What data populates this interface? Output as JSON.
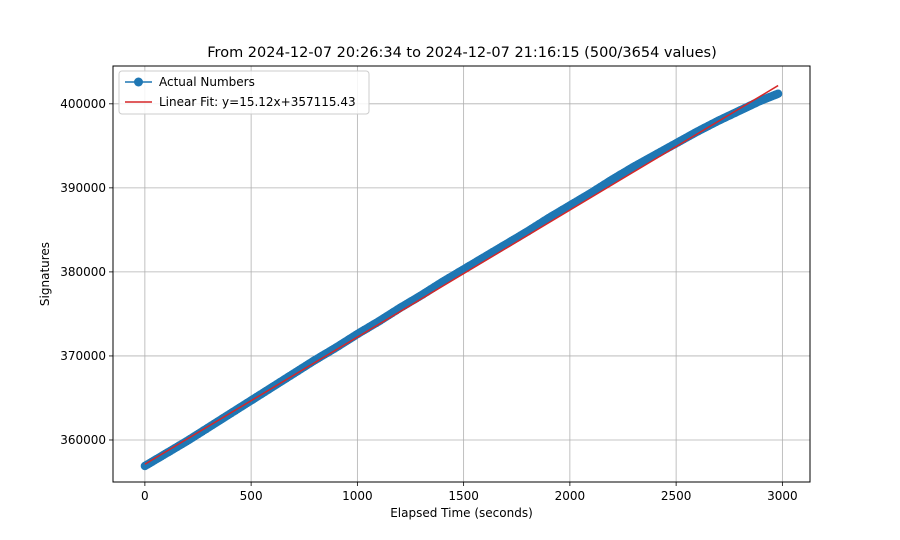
{
  "chart_data": {
    "type": "scatter",
    "title": "From 2024-12-07 20:26:34 to 2024-12-07 21:16:15 (500/3654 values)",
    "xlabel": "Elapsed Time (seconds)",
    "ylabel": "Signatures",
    "xlim": [
      -150,
      3130
    ],
    "ylim": [
      355000,
      404500
    ],
    "xticks": [
      0,
      500,
      1000,
      1500,
      2000,
      2500,
      3000
    ],
    "xtick_labels": [
      "0",
      "500",
      "1000",
      "1500",
      "2000",
      "2500",
      "3000"
    ],
    "yticks": [
      360000,
      370000,
      380000,
      390000,
      400000
    ],
    "ytick_labels": [
      "360000",
      "370000",
      "380000",
      "390000",
      "400000"
    ],
    "grid": true,
    "legend": {
      "placement": "top-left",
      "entries": [
        "Actual Numbers",
        "Linear Fit: y=15.12x+357115.43"
      ]
    },
    "series": [
      {
        "name": "Actual Numbers",
        "style": "markers-line",
        "color": "#1f77b4",
        "x": [
          0,
          100,
          200,
          300,
          400,
          500,
          600,
          700,
          800,
          900,
          1000,
          1100,
          1200,
          1300,
          1400,
          1500,
          1600,
          1700,
          1800,
          1900,
          2000,
          2100,
          2200,
          2300,
          2400,
          2500,
          2600,
          2700,
          2800,
          2900,
          2980
        ],
        "y": [
          356900,
          358400,
          359900,
          361500,
          363100,
          364700,
          366300,
          367900,
          369500,
          371000,
          372600,
          374100,
          375700,
          377200,
          378800,
          380300,
          381800,
          383300,
          384800,
          386400,
          387900,
          389400,
          391000,
          392500,
          393900,
          395300,
          396700,
          398000,
          399200,
          400400,
          401200
        ]
      },
      {
        "name": "Linear Fit: y=15.12x+357115.43",
        "style": "line",
        "color": "#d62728",
        "slope": 15.12,
        "intercept": 357115.43,
        "x_range": [
          0,
          2980
        ]
      }
    ]
  }
}
